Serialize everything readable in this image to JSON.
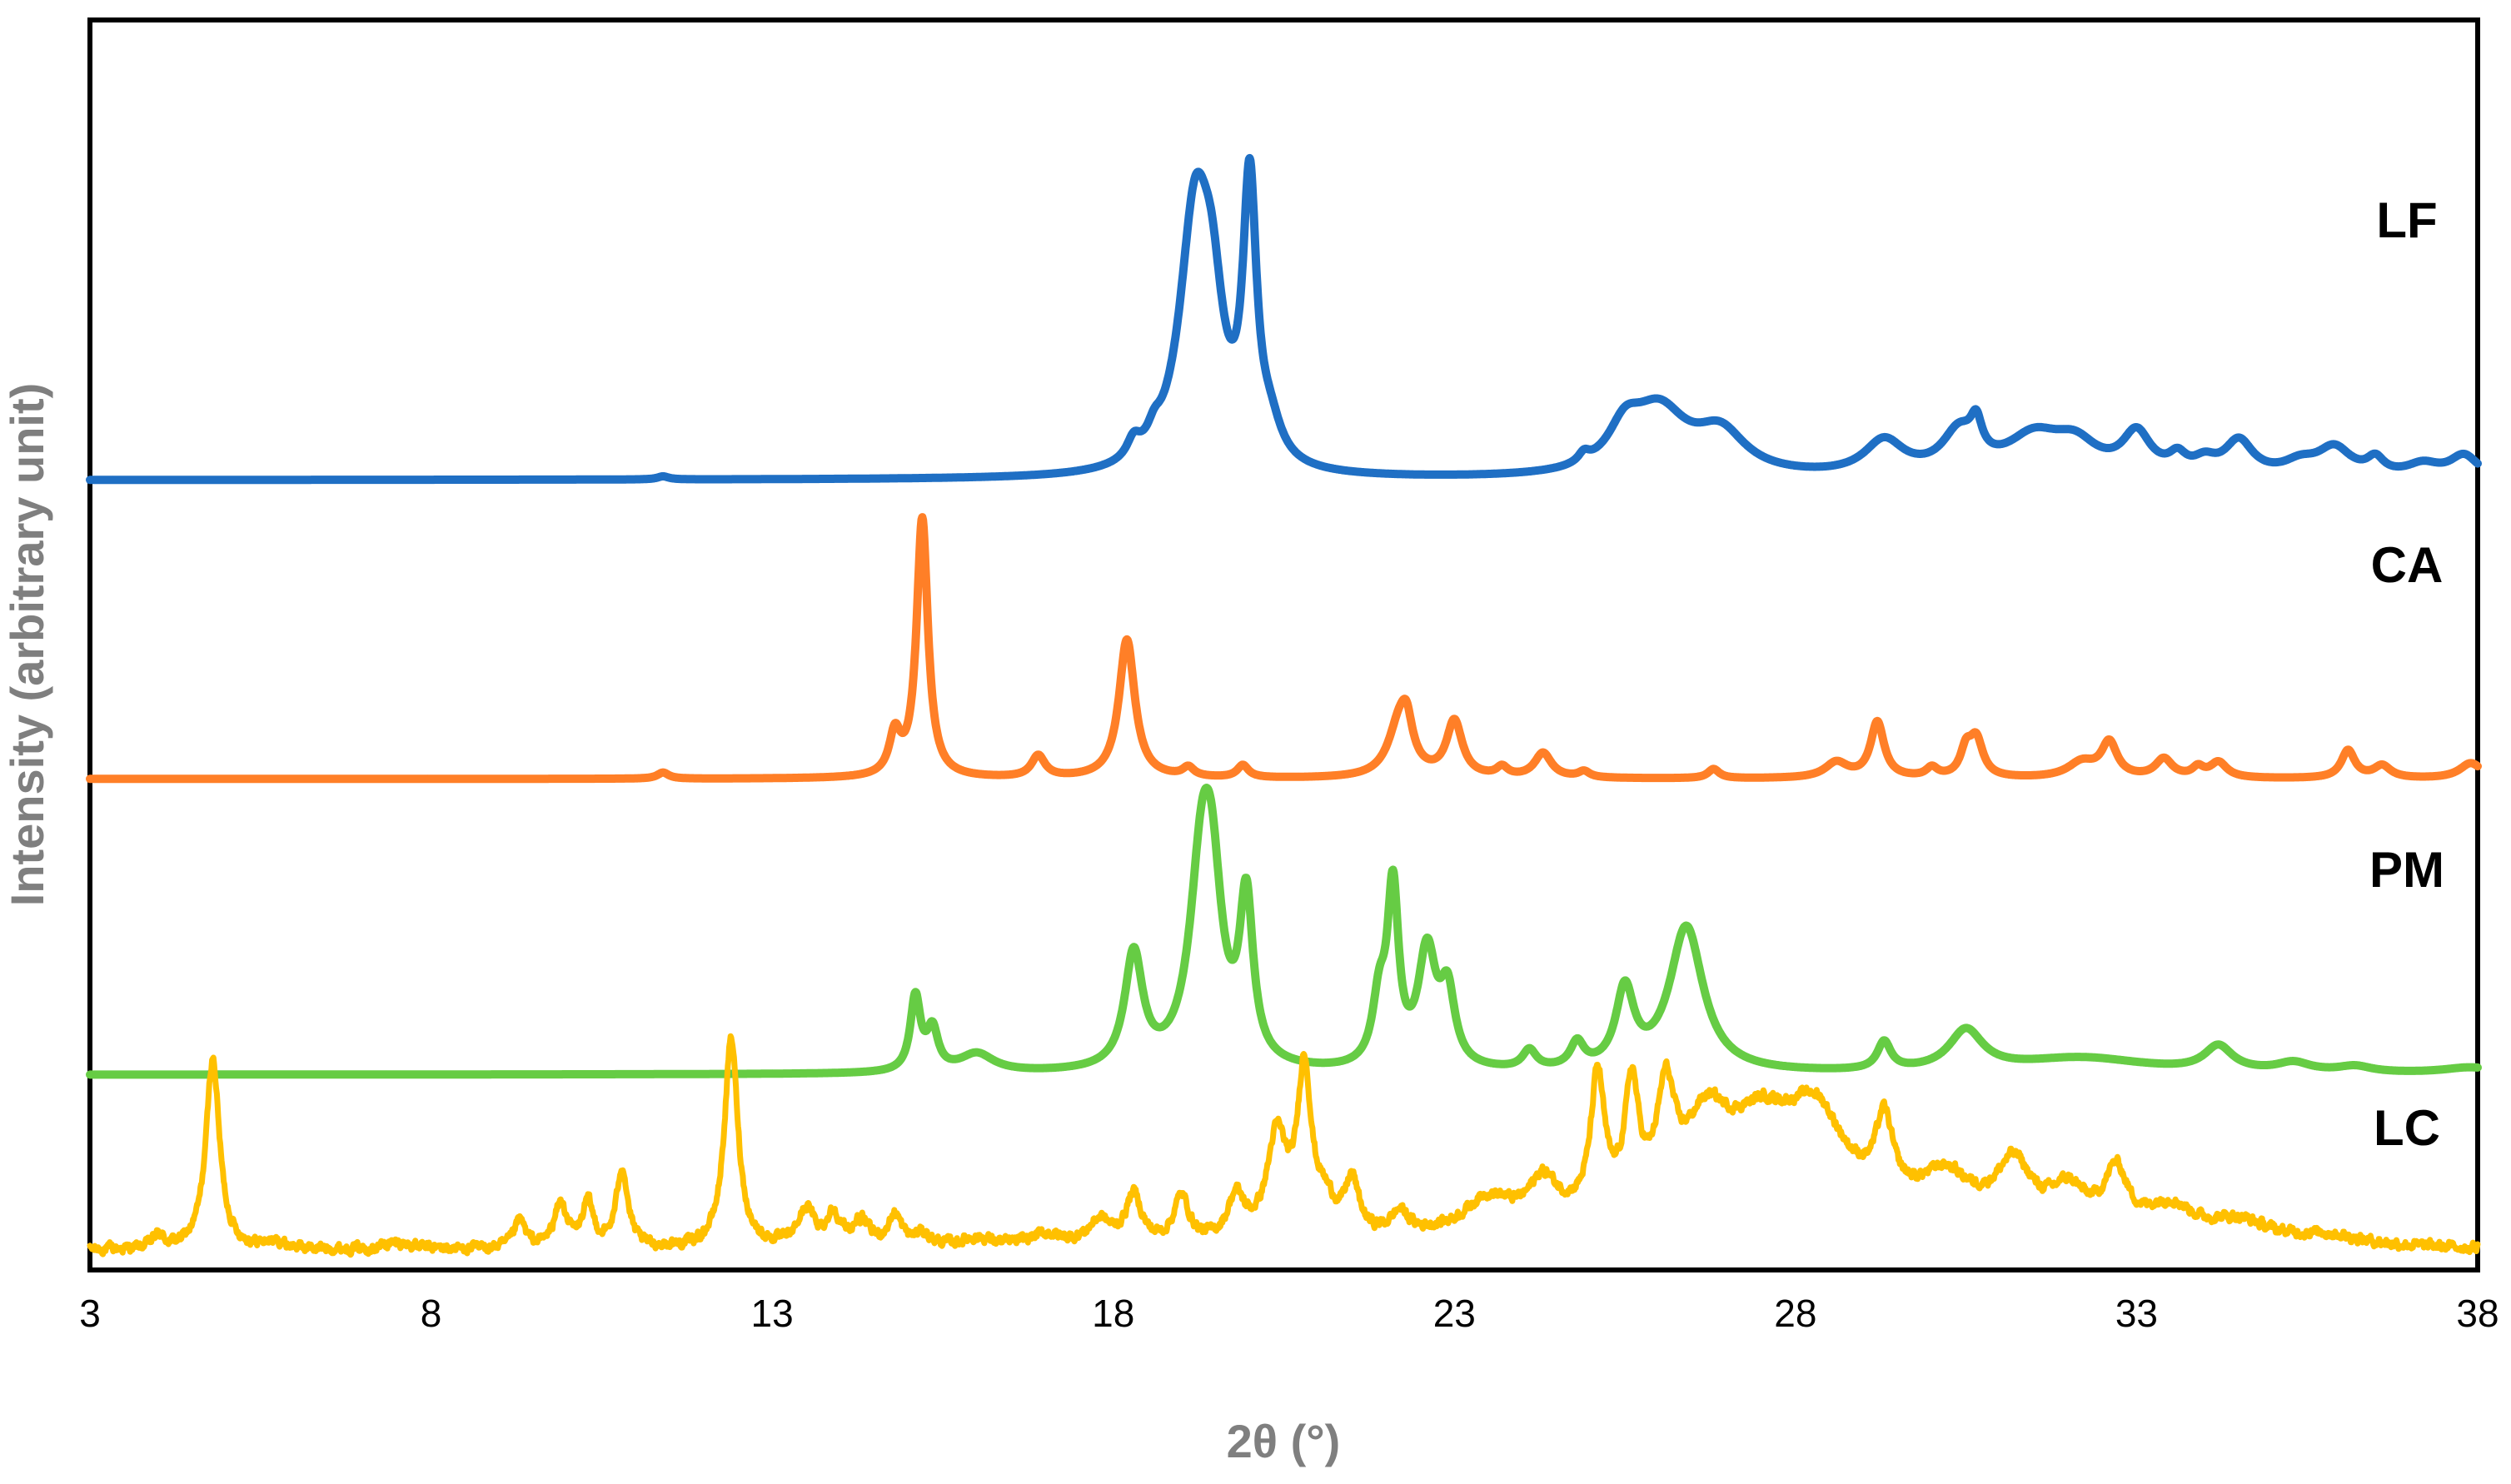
{
  "chart_data": {
    "type": "line",
    "title": "",
    "xlabel": "2θ (°)",
    "ylabel": "Intensity (arbitrary unit)",
    "xlim": [
      3,
      38
    ],
    "xticks": [
      3,
      8,
      13,
      18,
      23,
      28,
      33,
      38
    ],
    "xtick_labels": [
      "3",
      "8",
      "13",
      "18",
      "23",
      "28",
      "33",
      "38"
    ],
    "y_ticks_shown": false,
    "grid": false,
    "legend": "inline labels at right",
    "series": [
      {
        "name": "LF",
        "color": "#1f6fc4",
        "baseline": 2.55,
        "noise": 0,
        "peaks": [
          [
            11.4,
            0.01,
            0.1
          ],
          [
            18.3,
            0.06,
            0.12
          ],
          [
            18.6,
            0.05,
            0.12
          ],
          [
            19.2,
            0.82,
            0.28
          ],
          [
            19.45,
            0.35,
            0.2
          ],
          [
            20.0,
            0.88,
            0.12
          ],
          [
            20.3,
            0.1,
            0.2
          ],
          [
            24.9,
            0.03,
            0.1
          ],
          [
            25.5,
            0.12,
            0.3
          ],
          [
            26.0,
            0.2,
            0.5
          ],
          [
            26.9,
            0.13,
            0.45
          ],
          [
            29.3,
            0.11,
            0.35
          ],
          [
            30.4,
            0.13,
            0.3
          ],
          [
            30.65,
            0.1,
            0.1
          ],
          [
            31.5,
            0.12,
            0.5
          ],
          [
            32.1,
            0.09,
            0.4
          ],
          [
            33.0,
            0.13,
            0.25
          ],
          [
            33.6,
            0.05,
            0.15
          ],
          [
            34.0,
            0.04,
            0.2
          ],
          [
            34.5,
            0.11,
            0.25
          ],
          [
            35.4,
            0.04,
            0.3
          ],
          [
            35.9,
            0.09,
            0.3
          ],
          [
            36.5,
            0.05,
            0.15
          ],
          [
            37.2,
            0.04,
            0.3
          ],
          [
            37.8,
            0.07,
            0.25
          ]
        ]
      },
      {
        "name": "CA",
        "color": "#ff7f27",
        "baseline": 1.58,
        "noise": 0,
        "peaks": [
          [
            11.4,
            0.02,
            0.1
          ],
          [
            14.8,
            0.13,
            0.1
          ],
          [
            15.2,
            0.84,
            0.1
          ],
          [
            16.9,
            0.07,
            0.12
          ],
          [
            18.2,
            0.45,
            0.14
          ],
          [
            19.1,
            0.03,
            0.1
          ],
          [
            19.9,
            0.04,
            0.1
          ],
          [
            22.2,
            0.18,
            0.2
          ],
          [
            22.3,
            0.1,
            0.1
          ],
          [
            23.0,
            0.18,
            0.14
          ],
          [
            23.7,
            0.03,
            0.1
          ],
          [
            24.3,
            0.08,
            0.15
          ],
          [
            24.9,
            0.02,
            0.1
          ],
          [
            26.8,
            0.03,
            0.1
          ],
          [
            28.6,
            0.05,
            0.2
          ],
          [
            29.2,
            0.18,
            0.12
          ],
          [
            30.0,
            0.03,
            0.1
          ],
          [
            30.5,
            0.08,
            0.1
          ],
          [
            30.65,
            0.12,
            0.12
          ],
          [
            32.2,
            0.05,
            0.25
          ],
          [
            32.6,
            0.11,
            0.14
          ],
          [
            33.4,
            0.06,
            0.15
          ],
          [
            33.9,
            0.03,
            0.1
          ],
          [
            34.2,
            0.05,
            0.15
          ],
          [
            36.1,
            0.09,
            0.12
          ],
          [
            36.6,
            0.04,
            0.15
          ],
          [
            37.9,
            0.05,
            0.2
          ]
        ]
      },
      {
        "name": "PM",
        "color": "#66cc44",
        "baseline": 0.62,
        "noise": 0,
        "peaks": [
          [
            15.1,
            0.24,
            0.09
          ],
          [
            15.35,
            0.13,
            0.1
          ],
          [
            16.0,
            0.06,
            0.3
          ],
          [
            18.3,
            0.37,
            0.16
          ],
          [
            19.3,
            0.62,
            0.22
          ],
          [
            19.45,
            0.4,
            0.18
          ],
          [
            19.95,
            0.52,
            0.12
          ],
          [
            21.9,
            0.2,
            0.12
          ],
          [
            22.1,
            0.56,
            0.1
          ],
          [
            22.6,
            0.37,
            0.16
          ],
          [
            22.9,
            0.23,
            0.13
          ],
          [
            24.1,
            0.06,
            0.12
          ],
          [
            24.8,
            0.08,
            0.12
          ],
          [
            25.5,
            0.25,
            0.16
          ],
          [
            26.4,
            0.47,
            0.3
          ],
          [
            29.3,
            0.09,
            0.12
          ],
          [
            30.5,
            0.13,
            0.3
          ],
          [
            32.2,
            0.05,
            1.2
          ],
          [
            34.2,
            0.08,
            0.25
          ],
          [
            35.3,
            0.03,
            0.3
          ],
          [
            36.2,
            0.02,
            0.3
          ],
          [
            37.9,
            0.02,
            0.5
          ]
        ]
      },
      {
        "name": "LC",
        "color": "#ffc000",
        "baseline": 0.05,
        "noise": 0.025,
        "peaks": [
          [
            4.0,
            0.04,
            0.1
          ],
          [
            4.8,
            0.62,
            0.12
          ],
          [
            5.7,
            0.02,
            0.2
          ],
          [
            7.5,
            0.02,
            0.3
          ],
          [
            9.3,
            0.09,
            0.1
          ],
          [
            9.9,
            0.14,
            0.12
          ],
          [
            10.3,
            0.14,
            0.1
          ],
          [
            10.8,
            0.26,
            0.1
          ],
          [
            12.4,
            0.68,
            0.12
          ],
          [
            13.5,
            0.12,
            0.15
          ],
          [
            13.9,
            0.1,
            0.12
          ],
          [
            14.3,
            0.08,
            0.15
          ],
          [
            14.8,
            0.1,
            0.12
          ],
          [
            15.2,
            0.04,
            0.15
          ],
          [
            16.0,
            0.03,
            0.3
          ],
          [
            17.0,
            0.04,
            0.3
          ],
          [
            17.8,
            0.08,
            0.2
          ],
          [
            18.3,
            0.16,
            0.14
          ],
          [
            19.0,
            0.15,
            0.14
          ],
          [
            19.8,
            0.14,
            0.15
          ],
          [
            20.4,
            0.33,
            0.18
          ],
          [
            20.8,
            0.52,
            0.12
          ],
          [
            21.1,
            0.1,
            0.2
          ],
          [
            21.5,
            0.17,
            0.12
          ],
          [
            22.2,
            0.07,
            0.15
          ],
          [
            23.5,
            0.1,
            0.4
          ],
          [
            24.3,
            0.13,
            0.25
          ],
          [
            25.1,
            0.43,
            0.12
          ],
          [
            25.6,
            0.38,
            0.12
          ],
          [
            26.1,
            0.33,
            0.15
          ],
          [
            26.7,
            0.25,
            0.4
          ],
          [
            27.5,
            0.24,
            0.6
          ],
          [
            28.3,
            0.27,
            0.5
          ],
          [
            29.3,
            0.24,
            0.15
          ],
          [
            30.2,
            0.12,
            0.4
          ],
          [
            31.2,
            0.18,
            0.3
          ],
          [
            32.0,
            0.11,
            0.3
          ],
          [
            32.7,
            0.18,
            0.2
          ],
          [
            33.5,
            0.09,
            0.4
          ],
          [
            34.5,
            0.06,
            0.5
          ],
          [
            35.8,
            0.03,
            0.6
          ]
        ],
        "hump": [
          28.0,
          0.12,
          5.0
        ]
      }
    ],
    "series_labels": [
      "LF",
      "CA",
      "PM",
      "LC"
    ]
  }
}
